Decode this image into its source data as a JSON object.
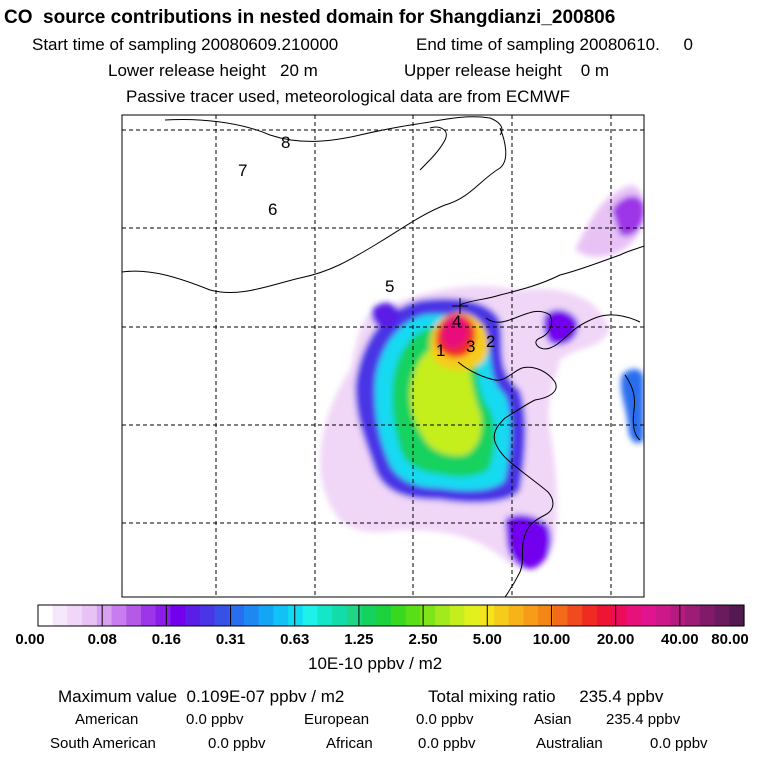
{
  "header": {
    "title": "CO  source contributions in nested domain for Shangdianzi_200806",
    "start_label": "Start time of sampling",
    "start_value": "20080609.210000",
    "end_label": "End time of sampling",
    "end_value": "20080610.     0",
    "lower_label": "Lower release height",
    "lower_value": "20 m",
    "upper_label": "Upper release height",
    "upper_value": "0 m",
    "note": "Passive tracer used, meteorological data are from ECMWF"
  },
  "chart_data": {
    "type": "heatmap",
    "title": "CO  source contributions in nested domain for Shangdianzi_200806",
    "markers": [
      "1",
      "2",
      "3",
      "4",
      "5",
      "6",
      "7",
      "8"
    ],
    "grid": true,
    "colorbar": {
      "ticks": [
        "0.00",
        "0.08",
        "0.16",
        "0.31",
        "0.63",
        "1.25",
        "2.50",
        "5.00",
        "10.00",
        "20.00",
        "40.00",
        "80.00"
      ],
      "colors": [
        "#ffffff",
        "#f6e8fa",
        "#f0d6f7",
        "#e8c2f5",
        "#d9a0f2",
        "#c77cf0",
        "#b35ae6",
        "#9d36e8",
        "#8a1ee8",
        "#7200ee",
        "#5a1ee6",
        "#4a36e6",
        "#3650e8",
        "#2a6ef0",
        "#1e88f2",
        "#14a6f6",
        "#10c2f6",
        "#12daf2",
        "#1ef0ea",
        "#14e6c8",
        "#12dca8",
        "#20d686",
        "#14d25e",
        "#1cd23c",
        "#38d820",
        "#5ade18",
        "#80e41a",
        "#a2ea1c",
        "#c4ee1e",
        "#e2f01e",
        "#f4e41e",
        "#f6cc1a",
        "#f6b418",
        "#f69c18",
        "#f48616",
        "#f26a1a",
        "#f04a1e",
        "#ee2c22",
        "#ee1434",
        "#ec0c58",
        "#e8107a",
        "#e0148e",
        "#cc1888",
        "#b41a80",
        "#9c1c76",
        "#821a6a",
        "#6a1a5e",
        "#521a50"
      ],
      "unit": "10E-10 ppbv / m2"
    },
    "summary": {
      "max_label": "Maximum value",
      "max_value": "0.109E-07 ppbv / m2",
      "total_label": "Total mixing ratio",
      "total_value": "235.4 ppbv"
    },
    "regions": [
      {
        "name": "American",
        "value": "0.0 ppbv"
      },
      {
        "name": "European",
        "value": "0.0 ppbv"
      },
      {
        "name": "Asian",
        "value": "235.4 ppbv"
      },
      {
        "name": "South American",
        "value": "0.0 ppbv"
      },
      {
        "name": "African",
        "value": "0.0 ppbv"
      },
      {
        "name": "Australian",
        "value": "0.0 ppbv"
      }
    ]
  }
}
